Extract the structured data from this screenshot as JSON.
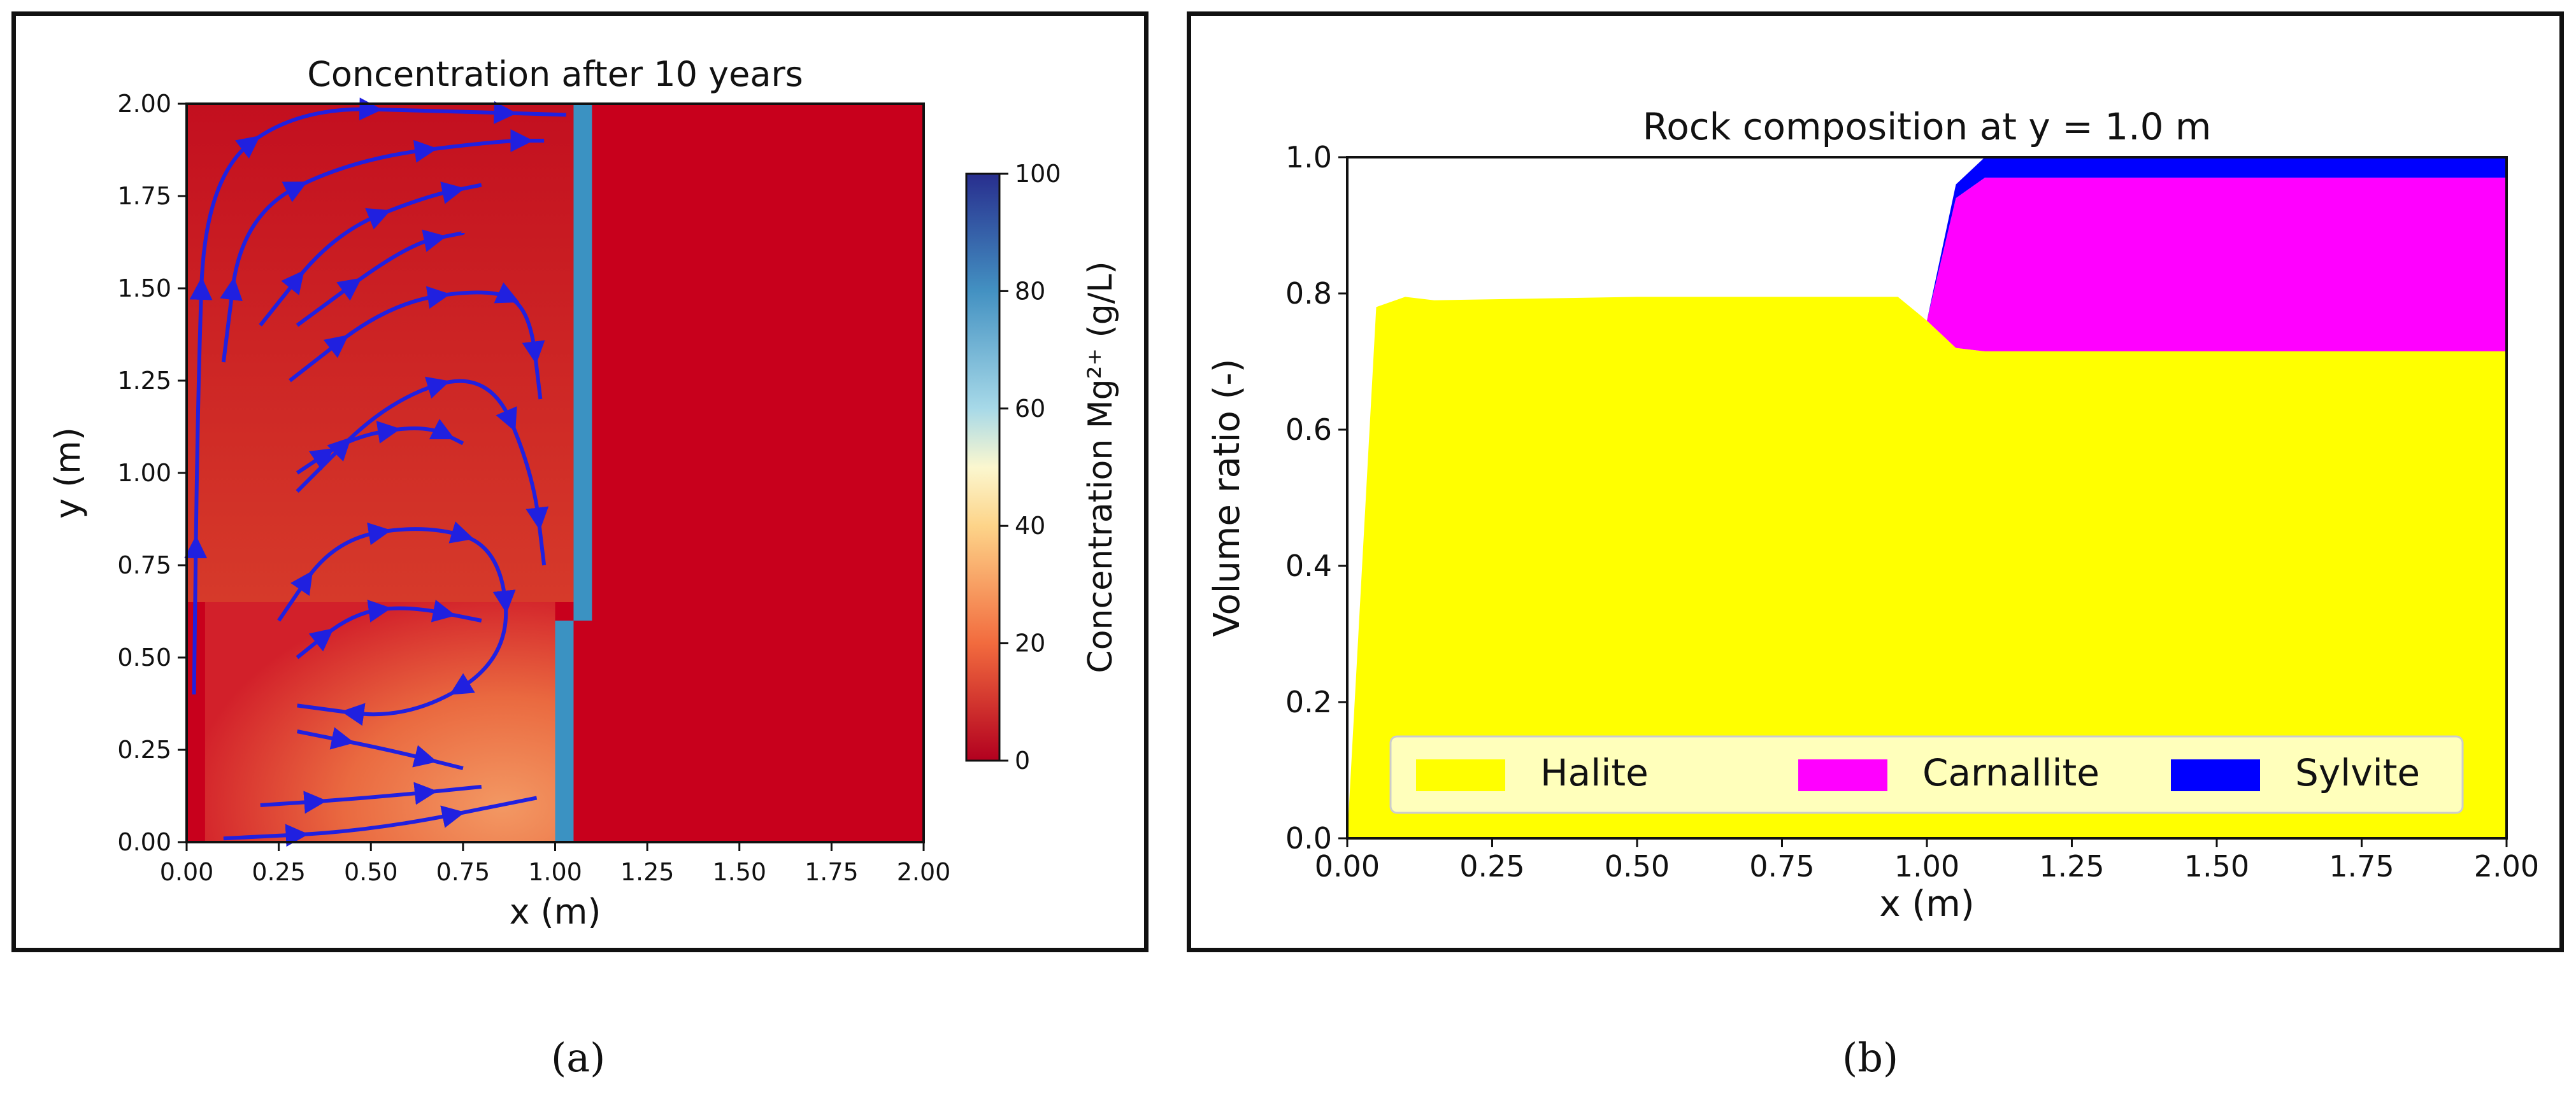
{
  "figure": {
    "label_a": "(a)",
    "label_b": "(b)"
  },
  "colors": {
    "red": "#c8001c",
    "blue_stream": "#2020e0",
    "halite": "#ffff00",
    "carnallite": "#ff00ff",
    "sylvite": "#0000ff"
  },
  "chart_data": [
    {
      "type": "heatmap",
      "title": "Concentration after 10 years",
      "xlabel": "x (m)",
      "ylabel": "y (m)",
      "xlim": [
        0,
        2
      ],
      "ylim": [
        0,
        2
      ],
      "xticks": [
        "0.00",
        "0.25",
        "0.50",
        "0.75",
        "1.00",
        "1.25",
        "1.50",
        "1.75",
        "2.00"
      ],
      "yticks": [
        "0.00",
        "0.25",
        "0.50",
        "0.75",
        "1.00",
        "1.25",
        "1.50",
        "1.75",
        "2.00"
      ],
      "colorbar": {
        "label": "Concentration Mg²⁺ (g/L)",
        "range": [
          0,
          100
        ],
        "ticks": [
          "0",
          "20",
          "40",
          "60",
          "80",
          "100"
        ]
      },
      "regions": [
        {
          "name": "background",
          "x": [
            0,
            2
          ],
          "y": [
            0,
            2
          ],
          "value": 2
        },
        {
          "name": "left-column-gradient",
          "x": [
            0,
            1.05
          ],
          "y": [
            0.65,
            2.0
          ],
          "value_range": [
            5,
            12
          ]
        },
        {
          "name": "lower-left-gradient",
          "x": [
            0.05,
            1.0
          ],
          "y": [
            0,
            0.65
          ],
          "value_range": [
            8,
            30
          ]
        },
        {
          "name": "upper-channel",
          "x": [
            1.05,
            1.1
          ],
          "y": [
            0.6,
            2.0
          ],
          "value": 75
        },
        {
          "name": "lower-channel",
          "x": [
            1.0,
            1.05
          ],
          "y": [
            0,
            0.6
          ],
          "value": 75
        }
      ],
      "streamlines": [
        {
          "name": "vortex-upper-outer",
          "points": [
            [
              0.02,
              0.4
            ],
            [
              0.03,
              1.2
            ],
            [
              0.05,
              1.8
            ],
            [
              0.3,
              1.99
            ],
            [
              0.7,
              1.98
            ],
            [
              1.03,
              1.97
            ]
          ]
        },
        {
          "name": "vortex-upper-2",
          "points": [
            [
              0.1,
              1.3
            ],
            [
              0.15,
              1.7
            ],
            [
              0.45,
              1.85
            ],
            [
              0.85,
              1.9
            ],
            [
              0.97,
              1.9
            ]
          ]
        },
        {
          "name": "vortex-upper-3",
          "points": [
            [
              0.2,
              1.4
            ],
            [
              0.4,
              1.65
            ],
            [
              0.65,
              1.75
            ],
            [
              0.8,
              1.78
            ]
          ]
        },
        {
          "name": "vortex-upper-4",
          "points": [
            [
              0.3,
              1.4
            ],
            [
              0.6,
              1.62
            ],
            [
              0.75,
              1.65
            ]
          ]
        },
        {
          "name": "vortex-upper-5",
          "points": [
            [
              0.28,
              1.25
            ],
            [
              0.55,
              1.46
            ],
            [
              0.82,
              1.5
            ],
            [
              0.93,
              1.45
            ],
            [
              0.96,
              1.2
            ]
          ]
        },
        {
          "name": "vortex-upper-6",
          "points": [
            [
              0.3,
              0.95
            ],
            [
              0.55,
              1.2
            ],
            [
              0.82,
              1.28
            ],
            [
              0.94,
              1.0
            ],
            [
              0.97,
              0.75
            ]
          ]
        },
        {
          "name": "vortex-upper-7",
          "points": [
            [
              0.3,
              1.0
            ],
            [
              0.45,
              1.1
            ],
            [
              0.65,
              1.13
            ],
            [
              0.75,
              1.08
            ]
          ]
        },
        {
          "name": "vortex-lower-1",
          "points": [
            [
              0.25,
              0.6
            ],
            [
              0.4,
              0.82
            ],
            [
              0.65,
              0.86
            ],
            [
              0.85,
              0.8
            ],
            [
              0.88,
              0.5
            ],
            [
              0.6,
              0.33
            ],
            [
              0.3,
              0.37
            ]
          ]
        },
        {
          "name": "vortex-lower-2",
          "points": [
            [
              0.3,
              0.5
            ],
            [
              0.45,
              0.62
            ],
            [
              0.6,
              0.64
            ],
            [
              0.8,
              0.6
            ]
          ]
        },
        {
          "name": "vortex-lower-3",
          "points": [
            [
              0.3,
              0.3
            ],
            [
              0.55,
              0.25
            ],
            [
              0.75,
              0.2
            ]
          ]
        },
        {
          "name": "vortex-lower-4",
          "points": [
            [
              0.2,
              0.1
            ],
            [
              0.5,
              0.12
            ],
            [
              0.8,
              0.15
            ]
          ]
        },
        {
          "name": "vortex-bottom",
          "points": [
            [
              0.1,
              0.01
            ],
            [
              0.5,
              0.03
            ],
            [
              0.95,
              0.12
            ]
          ]
        }
      ]
    },
    {
      "type": "area",
      "title": "Rock composition at y = 1.0 m",
      "xlabel": "x (m)",
      "ylabel": "Volume ratio (-)",
      "xlim": [
        0,
        2
      ],
      "ylim": [
        0,
        1
      ],
      "xticks": [
        "0.00",
        "0.25",
        "0.50",
        "0.75",
        "1.00",
        "1.25",
        "1.50",
        "1.75",
        "2.00"
      ],
      "yticks": [
        "0.0",
        "0.2",
        "0.4",
        "0.6",
        "0.8",
        "1.0"
      ],
      "x": [
        0,
        0.05,
        0.1,
        0.15,
        0.5,
        0.95,
        1.0,
        1.05,
        1.1,
        1.5,
        2.0
      ],
      "series": [
        {
          "name": "Halite",
          "values": [
            0.0,
            0.78,
            0.795,
            0.79,
            0.795,
            0.795,
            0.76,
            0.72,
            0.715,
            0.715,
            0.715
          ]
        },
        {
          "name": "Carnallite",
          "values": [
            0,
            0,
            0,
            0,
            0,
            0,
            0.0,
            0.22,
            0.255,
            0.255,
            0.255
          ]
        },
        {
          "name": "Sylvite",
          "values": [
            0,
            0,
            0,
            0,
            0,
            0,
            0.0,
            0.02,
            0.03,
            0.03,
            0.03
          ]
        }
      ],
      "legend": {
        "placement": "bottom",
        "entries": [
          "Halite",
          "Carnallite",
          "Sylvite"
        ]
      }
    }
  ]
}
